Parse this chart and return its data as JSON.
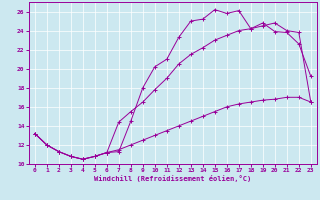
{
  "xlabel": "Windchill (Refroidissement éolien,°C)",
  "xlim": [
    -0.5,
    23.5
  ],
  "ylim": [
    10,
    27
  ],
  "xticks": [
    0,
    1,
    2,
    3,
    4,
    5,
    6,
    7,
    8,
    9,
    10,
    11,
    12,
    13,
    14,
    15,
    16,
    17,
    18,
    19,
    20,
    21,
    22,
    23
  ],
  "yticks": [
    10,
    12,
    14,
    16,
    18,
    20,
    22,
    24,
    26
  ],
  "bg_color": "#cce8f0",
  "line_color": "#990099",
  "line1_x": [
    0,
    1,
    2,
    3,
    4,
    5,
    6,
    7,
    8,
    9,
    10,
    11,
    12,
    13,
    14,
    15,
    16,
    17,
    18,
    19,
    20,
    21,
    22,
    23
  ],
  "line1_y": [
    13.2,
    12.0,
    11.3,
    10.8,
    10.5,
    10.8,
    11.2,
    11.3,
    14.5,
    18.0,
    20.2,
    21.0,
    23.3,
    25.0,
    25.2,
    26.2,
    25.8,
    26.1,
    24.2,
    24.8,
    23.9,
    23.8,
    22.6,
    19.2
  ],
  "line2_x": [
    0,
    1,
    2,
    3,
    4,
    5,
    6,
    7,
    8,
    9,
    10,
    11,
    12,
    13,
    14,
    15,
    16,
    17,
    18,
    19,
    20,
    21,
    22,
    23
  ],
  "line2_y": [
    13.2,
    12.0,
    11.3,
    10.8,
    10.5,
    10.8,
    11.2,
    14.4,
    15.5,
    16.5,
    17.8,
    19.0,
    20.5,
    21.5,
    22.2,
    23.0,
    23.5,
    24.0,
    24.2,
    24.5,
    24.8,
    24.0,
    23.8,
    16.5
  ],
  "line3_x": [
    0,
    1,
    2,
    3,
    4,
    5,
    6,
    7,
    8,
    9,
    10,
    11,
    12,
    13,
    14,
    15,
    16,
    17,
    18,
    19,
    20,
    21,
    22,
    23
  ],
  "line3_y": [
    13.2,
    12.0,
    11.3,
    10.8,
    10.5,
    10.8,
    11.2,
    11.5,
    12.0,
    12.5,
    13.0,
    13.5,
    14.0,
    14.5,
    15.0,
    15.5,
    16.0,
    16.3,
    16.5,
    16.7,
    16.8,
    17.0,
    17.0,
    16.5
  ]
}
